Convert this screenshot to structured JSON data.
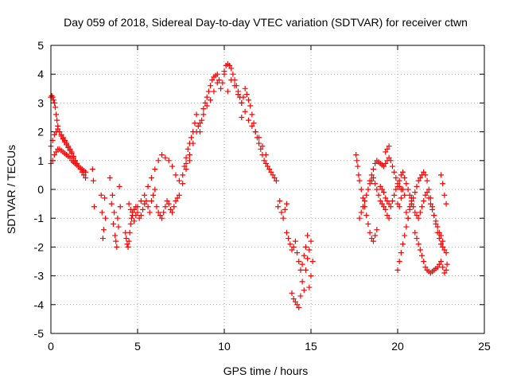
{
  "chart_data": {
    "type": "scatter",
    "title": "Day 059 of 2018, Sidereal Day-to-day VTEC variation (SDTVAR) for receiver ctwn",
    "xlabel": "GPS time / hours",
    "ylabel": "SDTVAR / TECUs",
    "xlim": [
      0,
      25
    ],
    "ylim": [
      -5,
      5
    ],
    "xticks": [
      "0",
      "5",
      "10",
      "15",
      "20",
      "25"
    ],
    "yticks": [
      "-5",
      "-4",
      "-3",
      "-2",
      "-1",
      "0",
      "1",
      "2",
      "3",
      "4",
      "5"
    ],
    "grid": true,
    "marker": "plus",
    "color": "#ff0000",
    "series": [
      {
        "name": "SDTVAR",
        "x": [
          0.0,
          0.05,
          0.1,
          0.15,
          0.2,
          0.25,
          0.3,
          0.35,
          0.4,
          0.5,
          0.6,
          0.7,
          0.8,
          0.9,
          1.0,
          1.1,
          1.2,
          1.3,
          1.4,
          1.5,
          1.6,
          1.7,
          1.8,
          1.9,
          2.0,
          0.0,
          0.1,
          0.2,
          0.3,
          0.4,
          0.5,
          0.6,
          0.7,
          0.8,
          0.9,
          1.0,
          1.1,
          1.2,
          1.3,
          1.4,
          1.5,
          1.6,
          1.7,
          1.8,
          1.9,
          2.0,
          0.0,
          0.1,
          0.2,
          0.3,
          0.4,
          0.5,
          0.6,
          0.7,
          0.8,
          0.9,
          1.0,
          1.1,
          1.2,
          1.3,
          1.4,
          1.5,
          2.4,
          2.45,
          2.5,
          2.9,
          2.95,
          3.0,
          3.05,
          3.1,
          3.15,
          3.4,
          3.5,
          3.6,
          3.7,
          3.8,
          3.9,
          4.0,
          3.55,
          3.65,
          3.75,
          3.85,
          3.95,
          4.3,
          4.35,
          4.4,
          4.45,
          4.5,
          4.55,
          4.6,
          4.65,
          4.7,
          4.8,
          4.9,
          5.0,
          5.1,
          5.2,
          5.3,
          5.4,
          5.5,
          5.6,
          5.7,
          5.8,
          5.9,
          6.0,
          4.5,
          4.6,
          4.7,
          4.8,
          4.9,
          5.0,
          5.2,
          5.4,
          5.6,
          5.8,
          6.0,
          6.2,
          6.4,
          6.6,
          6.8,
          7.0,
          7.2,
          7.4,
          7.6,
          7.8,
          8.0,
          6.1,
          6.2,
          6.3,
          6.4,
          6.5,
          6.6,
          6.7,
          6.8,
          6.9,
          7.0,
          7.1,
          7.2,
          7.3,
          7.4,
          7.6,
          7.7,
          7.8,
          7.9,
          8.0,
          8.1,
          8.2,
          8.3,
          8.4,
          8.5,
          8.6,
          8.7,
          8.8,
          8.9,
          9.0,
          9.1,
          9.2,
          9.3,
          9.4,
          9.5,
          9.6,
          9.7,
          9.8,
          9.9,
          10.0,
          7.8,
          8.0,
          8.2,
          8.4,
          8.6,
          8.8,
          9.0,
          9.2,
          9.4,
          9.6,
          10.0,
          10.1,
          10.2,
          10.3,
          10.4,
          10.5,
          10.6,
          10.7,
          10.8,
          10.9,
          11.0,
          10.2,
          10.4,
          10.6,
          10.8,
          11.0,
          11.1,
          11.2,
          11.3,
          11.4,
          11.5,
          11.6,
          11.7,
          11.8,
          11.9,
          12.0,
          12.1,
          12.2,
          12.3,
          12.4,
          12.5,
          12.6,
          12.7,
          12.8,
          12.9,
          13.0,
          11.0,
          11.2,
          11.4,
          11.6,
          11.8,
          12.0,
          12.2,
          12.4,
          13.1,
          13.2,
          13.3,
          13.4,
          13.5,
          13.6,
          13.6,
          13.7,
          13.8,
          13.9,
          14.0,
          14.1,
          14.2,
          14.3,
          14.4,
          14.5,
          14.6,
          14.7,
          14.8,
          14.9,
          15.0,
          13.9,
          14.0,
          14.1,
          14.2,
          14.3,
          14.4,
          14.5,
          14.6,
          14.7,
          14.8,
          14.9,
          15.0,
          15.1,
          17.6,
          17.65,
          17.7,
          17.75,
          17.8,
          17.9,
          18.0,
          18.1,
          18.2,
          18.3,
          18.4,
          18.5,
          18.6,
          18.7,
          18.8,
          17.8,
          17.9,
          18.0,
          18.1,
          18.2,
          18.3,
          18.4,
          18.5,
          18.6,
          18.7,
          18.8,
          18.9,
          19.0,
          19.1,
          19.2,
          19.3,
          19.4,
          19.5,
          18.4,
          18.5,
          18.6,
          18.7,
          18.8,
          18.9,
          19.0,
          19.1,
          19.2,
          19.3,
          19.4,
          19.5,
          19.6,
          19.7,
          19.8,
          19.9,
          20.0,
          20.1,
          20.2,
          19.0,
          19.1,
          19.2,
          19.3,
          19.4,
          19.5,
          19.6,
          19.7,
          19.8,
          19.9,
          19.3,
          19.4,
          19.5,
          20.0,
          20.1,
          20.2,
          20.3,
          20.4,
          20.5,
          20.6,
          20.7,
          20.8,
          20.9,
          21.0,
          21.1,
          21.2,
          21.3,
          21.4,
          21.5,
          21.6,
          21.7,
          21.8,
          21.9,
          22.0,
          22.1,
          22.2,
          22.3,
          22.4,
          22.5,
          22.6,
          22.7,
          22.8,
          20.0,
          20.1,
          20.2,
          20.3,
          20.4,
          20.5,
          20.6,
          20.7,
          20.8,
          20.9,
          21.0,
          21.1,
          21.2,
          21.3,
          21.4,
          21.5,
          21.6,
          21.7,
          21.8,
          21.9,
          22.0,
          22.1,
          22.2,
          22.3,
          22.4,
          22.5,
          22.6,
          21.0,
          21.1,
          21.2,
          21.3,
          21.4,
          21.5,
          21.6,
          21.7,
          21.8,
          21.9,
          22.0,
          22.1,
          22.2,
          22.3,
          22.4,
          20.0,
          20.1,
          20.2,
          20.3,
          20.4,
          20.5,
          20.6,
          20.7,
          20.8,
          22.5,
          22.6,
          22.7,
          22.8,
          22.85,
          22.5,
          22.6,
          22.7,
          22.8
        ],
        "y": [
          3.2,
          3.25,
          3.2,
          3.1,
          3.0,
          2.85,
          2.6,
          2.4,
          2.2,
          2.0,
          1.85,
          1.75,
          1.65,
          1.55,
          1.45,
          1.35,
          1.25,
          1.15,
          1.0,
          0.9,
          0.8,
          0.7,
          0.6,
          0.5,
          0.4,
          1.5,
          1.7,
          1.9,
          2.0,
          2.1,
          2.0,
          1.9,
          1.8,
          1.7,
          1.6,
          1.5,
          1.4,
          1.3,
          1.1,
          1.0,
          0.9,
          0.8,
          0.75,
          0.7,
          0.65,
          0.6,
          0.9,
          1.0,
          1.2,
          1.3,
          1.4,
          1.4,
          1.35,
          1.3,
          1.25,
          1.2,
          1.15,
          1.1,
          1.0,
          0.95,
          0.9,
          0.85,
          0.7,
          0.3,
          -0.6,
          -0.2,
          -0.8,
          -1.7,
          -1.4,
          -0.3,
          -1.0,
          0.4,
          -0.5,
          -1.2,
          -1.6,
          -2.0,
          -1.3,
          -0.6,
          -0.2,
          -0.8,
          -1.8,
          -1.0,
          0.1,
          -1.5,
          -1.7,
          -1.9,
          -2.0,
          -1.8,
          -1.5,
          -1.2,
          -1.0,
          -0.8,
          -0.7,
          -0.6,
          -0.8,
          -1.0,
          -0.9,
          -0.7,
          -0.5,
          -0.4,
          -0.6,
          -0.8,
          -0.4,
          -0.2,
          0.0,
          -0.5,
          -0.7,
          -0.9,
          -1.1,
          -0.9,
          -0.6,
          -0.4,
          -0.2,
          0.1,
          0.4,
          0.7,
          1.0,
          1.2,
          1.1,
          1.0,
          0.8,
          0.5,
          0.3,
          0.2,
          0.7,
          1.0,
          -0.6,
          -0.8,
          -0.9,
          -1.0,
          -0.8,
          -0.6,
          -0.4,
          -0.5,
          -0.7,
          -0.8,
          -0.6,
          -0.4,
          -0.3,
          -0.2,
          0.5,
          0.8,
          1.1,
          1.4,
          1.6,
          1.8,
          2.0,
          2.3,
          2.6,
          2.2,
          2.0,
          2.4,
          2.8,
          3.0,
          3.2,
          3.4,
          3.6,
          3.8,
          3.9,
          3.95,
          4.0,
          3.8,
          3.5,
          3.7,
          4.0,
          0.9,
          1.2,
          1.6,
          2.0,
          2.3,
          2.6,
          2.9,
          3.1,
          3.4,
          3.7,
          4.1,
          4.3,
          4.35,
          4.3,
          4.2,
          4.0,
          3.8,
          3.6,
          3.4,
          3.2,
          3.0,
          3.4,
          3.8,
          3.6,
          3.3,
          3.0,
          3.2,
          3.5,
          3.3,
          3.1,
          2.9,
          2.6,
          2.3,
          2.0,
          1.8,
          1.6,
          1.4,
          1.2,
          1.0,
          0.9,
          0.8,
          0.7,
          0.6,
          0.5,
          0.4,
          0.3,
          2.5,
          2.7,
          2.4,
          2.2,
          2.0,
          1.8,
          1.5,
          1.2,
          -0.6,
          -0.4,
          -0.8,
          -1.0,
          -0.7,
          -0.5,
          -1.5,
          -1.7,
          -1.9,
          -2.1,
          -2.0,
          -1.8,
          -2.2,
          -2.5,
          -2.8,
          -3.2,
          -3.5,
          -2.8,
          -2.4,
          -2.1,
          -1.8,
          -3.6,
          -3.8,
          -3.9,
          -4.0,
          -4.1,
          -3.7,
          -2.6,
          -2.3,
          -2.0,
          -1.6,
          -3.4,
          -3.0,
          -2.5,
          1.2,
          1.0,
          0.8,
          0.5,
          0.3,
          0.0,
          -0.3,
          -0.6,
          -0.9,
          -1.2,
          -1.5,
          -1.7,
          -1.8,
          -1.6,
          -1.4,
          -1.0,
          -0.8,
          -0.6,
          -0.4,
          -0.2,
          0.0,
          0.2,
          0.3,
          0.4,
          0.2,
          0.0,
          -0.2,
          -0.4,
          -0.5,
          -0.6,
          -0.7,
          -0.9,
          -1.0,
          0.3,
          0.5,
          0.7,
          0.9,
          1.0,
          0.95,
          0.9,
          0.85,
          0.8,
          0.9,
          1.0,
          1.1,
          1.0,
          0.8,
          0.6,
          0.4,
          0.2,
          0.1,
          0.0,
          0.1,
          0.0,
          -0.1,
          -0.3,
          -0.4,
          -0.5,
          -0.6,
          -0.4,
          -0.2,
          0.0,
          1.3,
          1.4,
          1.5,
          -2.8,
          -2.5,
          -2.2,
          -1.9,
          -1.6,
          -1.3,
          -1.0,
          -0.7,
          -0.5,
          -0.3,
          -0.1,
          0.1,
          0.3,
          0.4,
          0.5,
          0.6,
          0.5,
          0.3,
          0.0,
          -0.3,
          -0.6,
          -0.9,
          -1.2,
          -1.5,
          -1.7,
          -1.9,
          -2.0,
          -2.1,
          -2.2,
          0.1,
          0.3,
          0.5,
          0.6,
          0.4,
          0.2,
          0.0,
          -0.2,
          -0.4,
          -0.6,
          -0.8,
          -0.9,
          -1.0,
          -0.8,
          -0.6,
          -0.4,
          -0.2,
          -0.1,
          -0.3,
          -0.5,
          -0.7,
          -0.9,
          -1.1,
          -1.3,
          -1.5,
          -1.6,
          -1.8,
          -1.5,
          -1.7,
          -1.9,
          -2.1,
          -2.3,
          -2.5,
          -2.7,
          -2.8,
          -2.85,
          -2.9,
          -2.85,
          -2.8,
          -2.75,
          -2.7,
          -2.6,
          -0.5,
          -0.6,
          -0.3,
          0.0,
          -0.2,
          -0.8,
          -1.0,
          -0.6,
          -0.3,
          -2.5,
          -2.7,
          -2.9,
          -2.8,
          -2.6,
          0.5,
          0.2,
          -0.2,
          -0.5
        ]
      }
    ]
  }
}
